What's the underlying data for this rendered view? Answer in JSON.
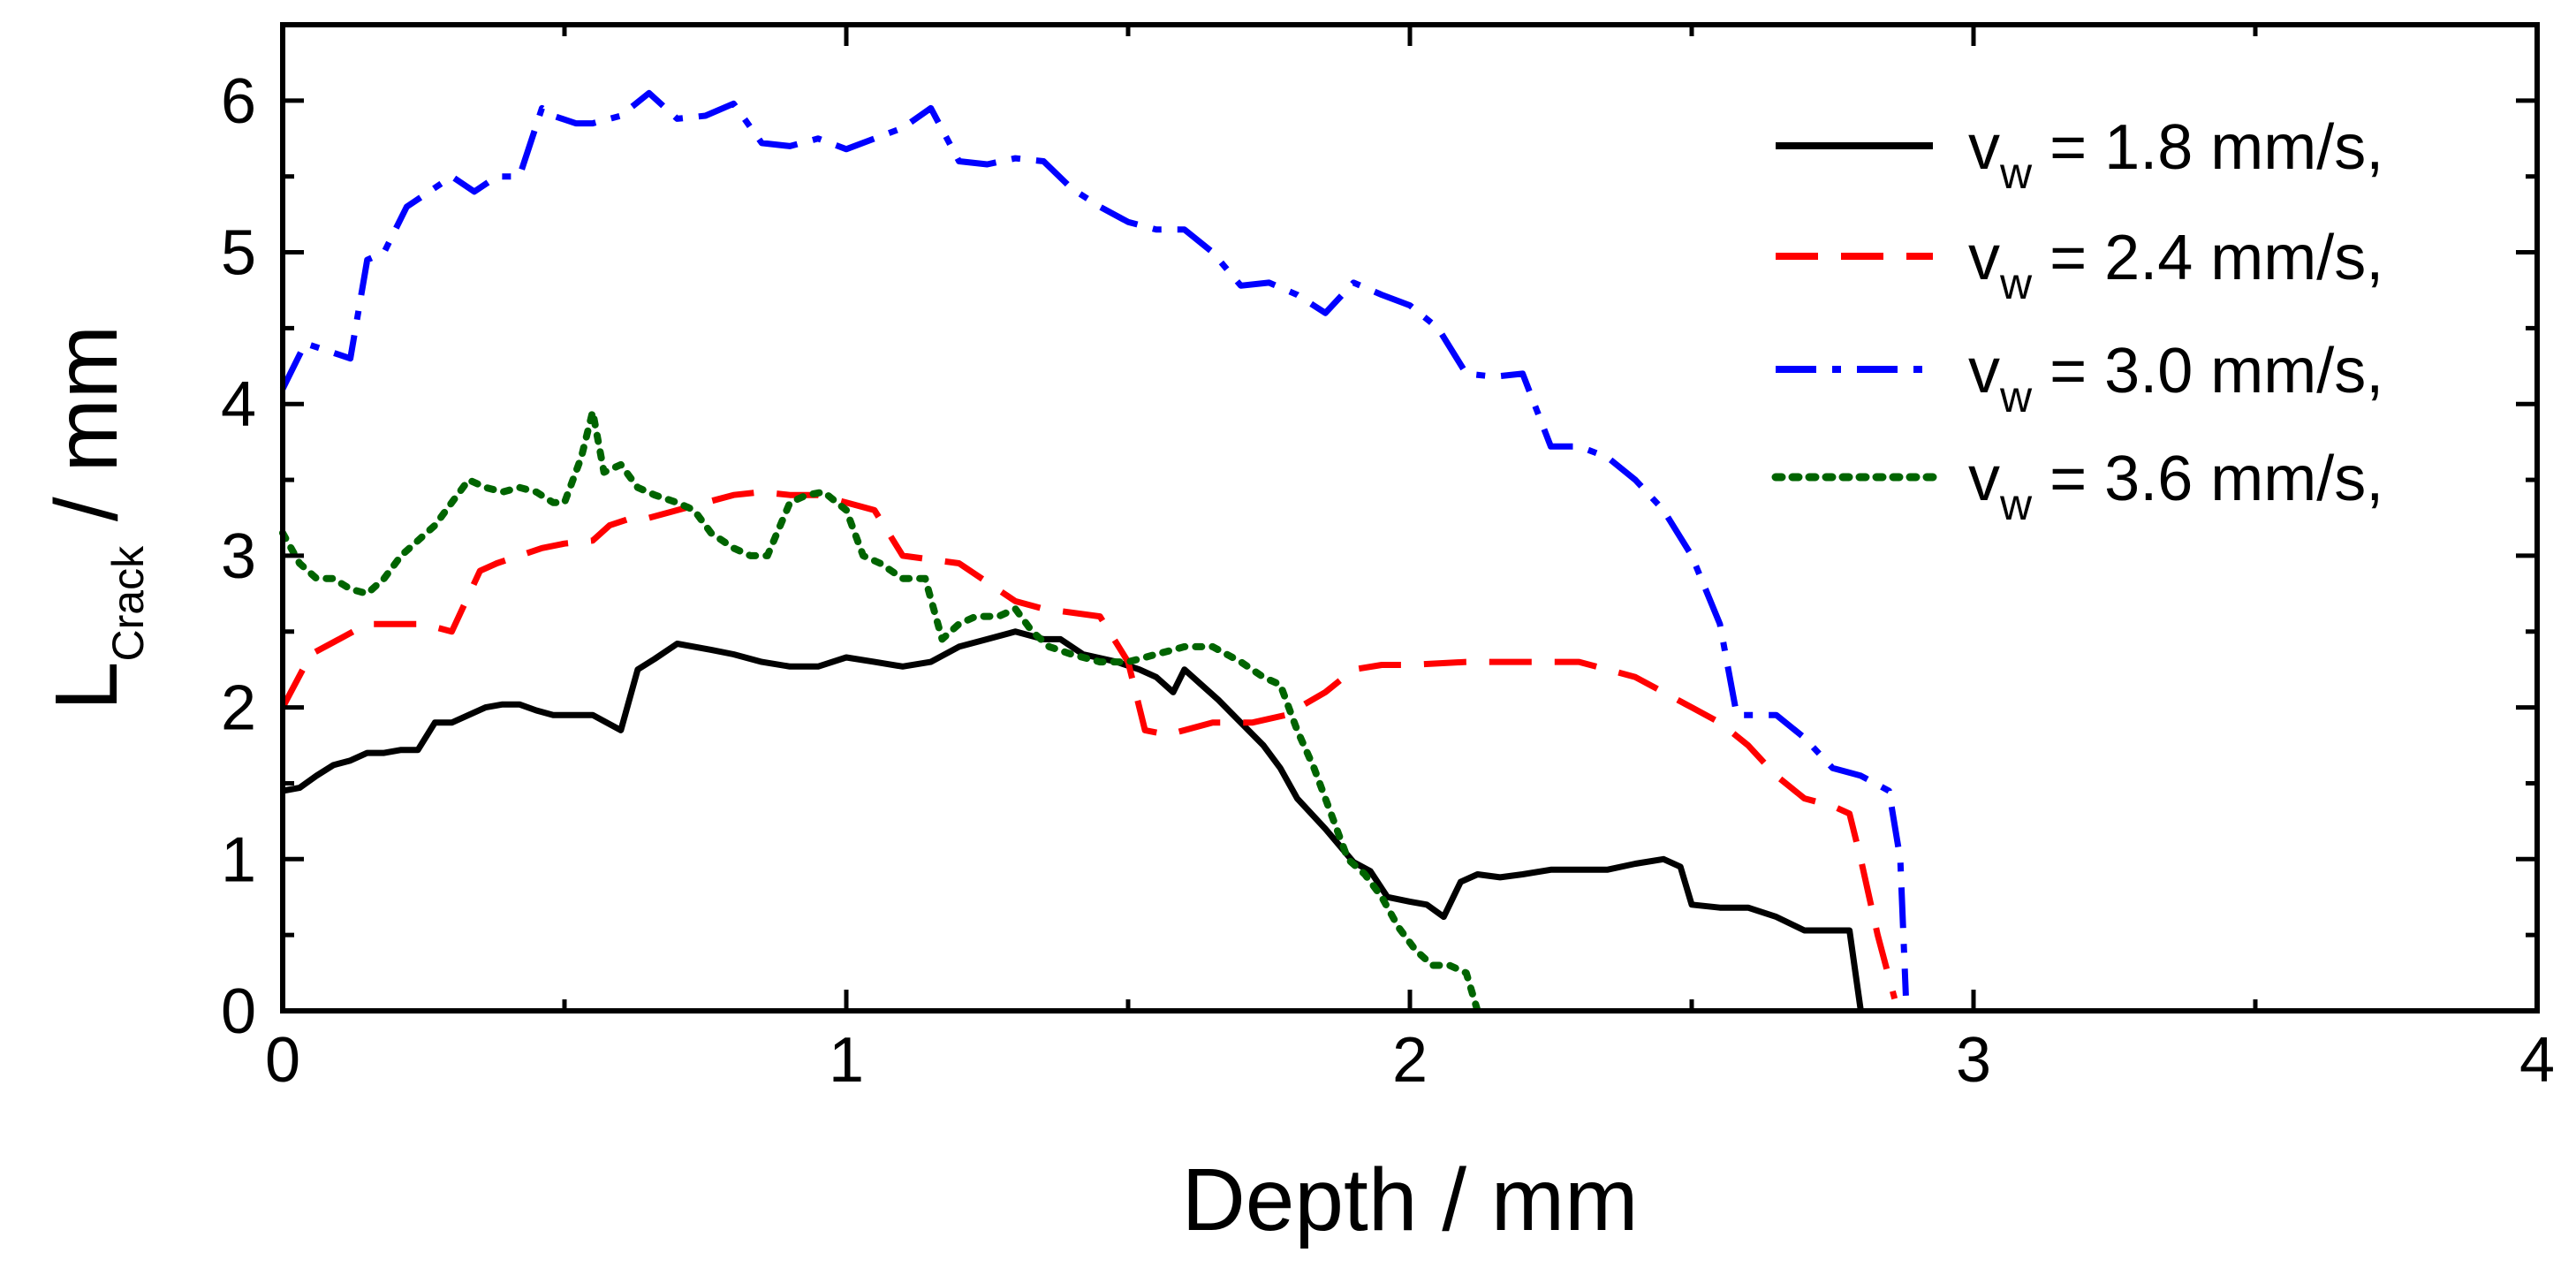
{
  "chart_data": {
    "type": "line",
    "title": "",
    "xlabel": "Depth / mm",
    "ylabel": {
      "main": "L",
      "sub": "Crack",
      "suffix": " / mm"
    },
    "xlim": [
      0,
      4
    ],
    "ylim": [
      0,
      6.5
    ],
    "xticks": [
      "0",
      "1",
      "2",
      "3",
      "4"
    ],
    "yticks": [
      "0",
      "1",
      "2",
      "3",
      "4",
      "5",
      "6"
    ],
    "legend_position": "top-right",
    "series": [
      {
        "name": "v_w = 1.8 mm/s,",
        "label_main": "v",
        "label_sub": "w",
        "label_rest": " = 1.8 mm/s,",
        "color": "#000000",
        "style": "solid",
        "x": [
          0,
          0.03,
          0.06,
          0.09,
          0.12,
          0.15,
          0.18,
          0.21,
          0.24,
          0.27,
          0.3,
          0.33,
          0.36,
          0.39,
          0.42,
          0.45,
          0.48,
          0.51,
          0.55,
          0.6,
          0.63,
          0.66,
          0.7,
          0.73,
          0.76,
          0.8,
          0.85,
          0.9,
          0.95,
          1.0,
          1.05,
          1.1,
          1.15,
          1.2,
          1.25,
          1.3,
          1.35,
          1.38,
          1.42,
          1.48,
          1.52,
          1.55,
          1.58,
          1.6,
          1.63,
          1.66,
          1.7,
          1.74,
          1.77,
          1.8,
          1.85,
          1.9,
          1.93,
          1.96,
          2.0,
          2.03,
          2.06,
          2.09,
          2.12,
          2.16,
          2.2,
          2.25,
          2.3,
          2.35,
          2.4,
          2.45,
          2.48,
          2.5,
          2.55,
          2.6,
          2.65,
          2.7,
          2.75,
          2.78,
          2.8
        ],
        "y": [
          1.45,
          1.47,
          1.55,
          1.62,
          1.65,
          1.7,
          1.7,
          1.72,
          1.72,
          1.9,
          1.9,
          1.95,
          2.0,
          2.02,
          2.02,
          1.98,
          1.95,
          1.95,
          1.95,
          1.85,
          2.25,
          2.32,
          2.42,
          2.4,
          2.38,
          2.35,
          2.3,
          2.27,
          2.27,
          2.33,
          2.3,
          2.27,
          2.3,
          2.4,
          2.45,
          2.5,
          2.45,
          2.45,
          2.35,
          2.3,
          2.25,
          2.2,
          2.1,
          2.25,
          2.15,
          2.05,
          1.9,
          1.75,
          1.6,
          1.4,
          1.2,
          0.98,
          0.92,
          0.75,
          0.72,
          0.7,
          0.62,
          0.85,
          0.9,
          0.88,
          0.9,
          0.93,
          0.93,
          0.93,
          0.97,
          1.0,
          0.95,
          0.7,
          0.68,
          0.68,
          0.62,
          0.53,
          0.53,
          0.53,
          0
        ]
      },
      {
        "name": "v_w = 2.4 mm/s,",
        "label_main": "v",
        "label_sub": "w",
        "label_rest": " = 2.4 mm/s,",
        "color": "#ff0000",
        "style": "dashed",
        "x": [
          0,
          0.05,
          0.1,
          0.15,
          0.2,
          0.25,
          0.3,
          0.35,
          0.38,
          0.42,
          0.46,
          0.5,
          0.55,
          0.58,
          0.62,
          0.65,
          0.7,
          0.75,
          0.8,
          0.85,
          0.9,
          0.95,
          1.0,
          1.05,
          1.1,
          1.2,
          1.3,
          1.35,
          1.45,
          1.5,
          1.53,
          1.57,
          1.6,
          1.65,
          1.72,
          1.78,
          1.85,
          1.9,
          1.95,
          2.0,
          2.1,
          2.2,
          2.3,
          2.35,
          2.4,
          2.5,
          2.55,
          2.6,
          2.65,
          2.7,
          2.75,
          2.78,
          2.8,
          2.83,
          2.86
        ],
        "y": [
          2.0,
          2.35,
          2.45,
          2.55,
          2.55,
          2.55,
          2.5,
          2.9,
          2.95,
          3.0,
          3.05,
          3.08,
          3.1,
          3.2,
          3.25,
          3.25,
          3.3,
          3.35,
          3.4,
          3.42,
          3.4,
          3.4,
          3.35,
          3.3,
          3.0,
          2.95,
          2.7,
          2.65,
          2.6,
          2.3,
          1.85,
          1.82,
          1.85,
          1.9,
          1.9,
          1.95,
          2.1,
          2.25,
          2.28,
          2.28,
          2.3,
          2.3,
          2.3,
          2.25,
          2.2,
          2.0,
          1.9,
          1.75,
          1.55,
          1.4,
          1.35,
          1.3,
          1.0,
          0.5,
          0.08
        ]
      },
      {
        "name": "v_w = 3.0 mm/s,",
        "label_main": "v",
        "label_sub": "w",
        "label_rest": " = 3.0 mm/s,",
        "color": "#0000ff",
        "style": "dashdot",
        "x": [
          0,
          0.04,
          0.08,
          0.12,
          0.15,
          0.18,
          0.22,
          0.26,
          0.3,
          0.34,
          0.38,
          0.42,
          0.46,
          0.48,
          0.52,
          0.55,
          0.6,
          0.65,
          0.7,
          0.75,
          0.8,
          0.85,
          0.9,
          0.95,
          1.0,
          1.05,
          1.1,
          1.15,
          1.2,
          1.25,
          1.3,
          1.35,
          1.4,
          1.45,
          1.5,
          1.55,
          1.6,
          1.65,
          1.7,
          1.75,
          1.8,
          1.85,
          1.9,
          1.95,
          2.0,
          2.05,
          2.1,
          2.15,
          2.2,
          2.25,
          2.3,
          2.35,
          2.4,
          2.45,
          2.5,
          2.55,
          2.58,
          2.61,
          2.65,
          2.7,
          2.75,
          2.8,
          2.85,
          2.87,
          2.88
        ],
        "y": [
          4.1,
          4.4,
          4.35,
          4.3,
          4.95,
          5.0,
          5.3,
          5.4,
          5.5,
          5.4,
          5.5,
          5.5,
          5.95,
          5.9,
          5.85,
          5.85,
          5.9,
          6.05,
          5.88,
          5.9,
          5.98,
          5.72,
          5.7,
          5.75,
          5.68,
          5.75,
          5.82,
          5.95,
          5.6,
          5.58,
          5.62,
          5.6,
          5.42,
          5.3,
          5.2,
          5.15,
          5.15,
          5.0,
          4.78,
          4.8,
          4.72,
          4.6,
          4.8,
          4.72,
          4.65,
          4.5,
          4.2,
          4.18,
          4.2,
          3.72,
          3.72,
          3.65,
          3.5,
          3.3,
          3.0,
          2.55,
          1.95,
          1.95,
          1.95,
          1.8,
          1.6,
          1.55,
          1.45,
          1.0,
          0.1
        ]
      },
      {
        "name": "v_w = 3.6 mm/s,",
        "label_main": "v",
        "label_sub": "w",
        "label_rest": " = 3.6 mm/s,",
        "color": "#006400",
        "style": "dotted",
        "x": [
          0,
          0.03,
          0.06,
          0.09,
          0.12,
          0.15,
          0.18,
          0.21,
          0.24,
          0.27,
          0.3,
          0.33,
          0.36,
          0.39,
          0.42,
          0.45,
          0.48,
          0.5,
          0.53,
          0.55,
          0.57,
          0.6,
          0.63,
          0.66,
          0.7,
          0.73,
          0.76,
          0.8,
          0.83,
          0.86,
          0.9,
          0.93,
          0.96,
          1.0,
          1.03,
          1.06,
          1.1,
          1.14,
          1.17,
          1.2,
          1.23,
          1.27,
          1.3,
          1.33,
          1.36,
          1.4,
          1.45,
          1.5,
          1.55,
          1.6,
          1.65,
          1.7,
          1.74,
          1.77,
          1.8,
          1.83,
          1.86,
          1.89,
          1.92,
          1.95,
          1.98,
          2.01,
          2.04,
          2.07,
          2.1,
          2.12
        ],
        "y": [
          3.15,
          2.95,
          2.85,
          2.85,
          2.78,
          2.75,
          2.85,
          3.0,
          3.1,
          3.2,
          3.35,
          3.5,
          3.45,
          3.42,
          3.45,
          3.42,
          3.35,
          3.35,
          3.65,
          3.95,
          3.55,
          3.6,
          3.45,
          3.4,
          3.35,
          3.3,
          3.15,
          3.05,
          3.0,
          3.0,
          3.35,
          3.4,
          3.42,
          3.3,
          3.0,
          2.95,
          2.85,
          2.85,
          2.45,
          2.55,
          2.6,
          2.6,
          2.65,
          2.5,
          2.4,
          2.35,
          2.3,
          2.3,
          2.35,
          2.4,
          2.4,
          2.3,
          2.2,
          2.15,
          1.85,
          1.6,
          1.3,
          1.0,
          0.9,
          0.75,
          0.55,
          0.4,
          0.3,
          0.3,
          0.25,
          0.0
        ]
      }
    ]
  }
}
